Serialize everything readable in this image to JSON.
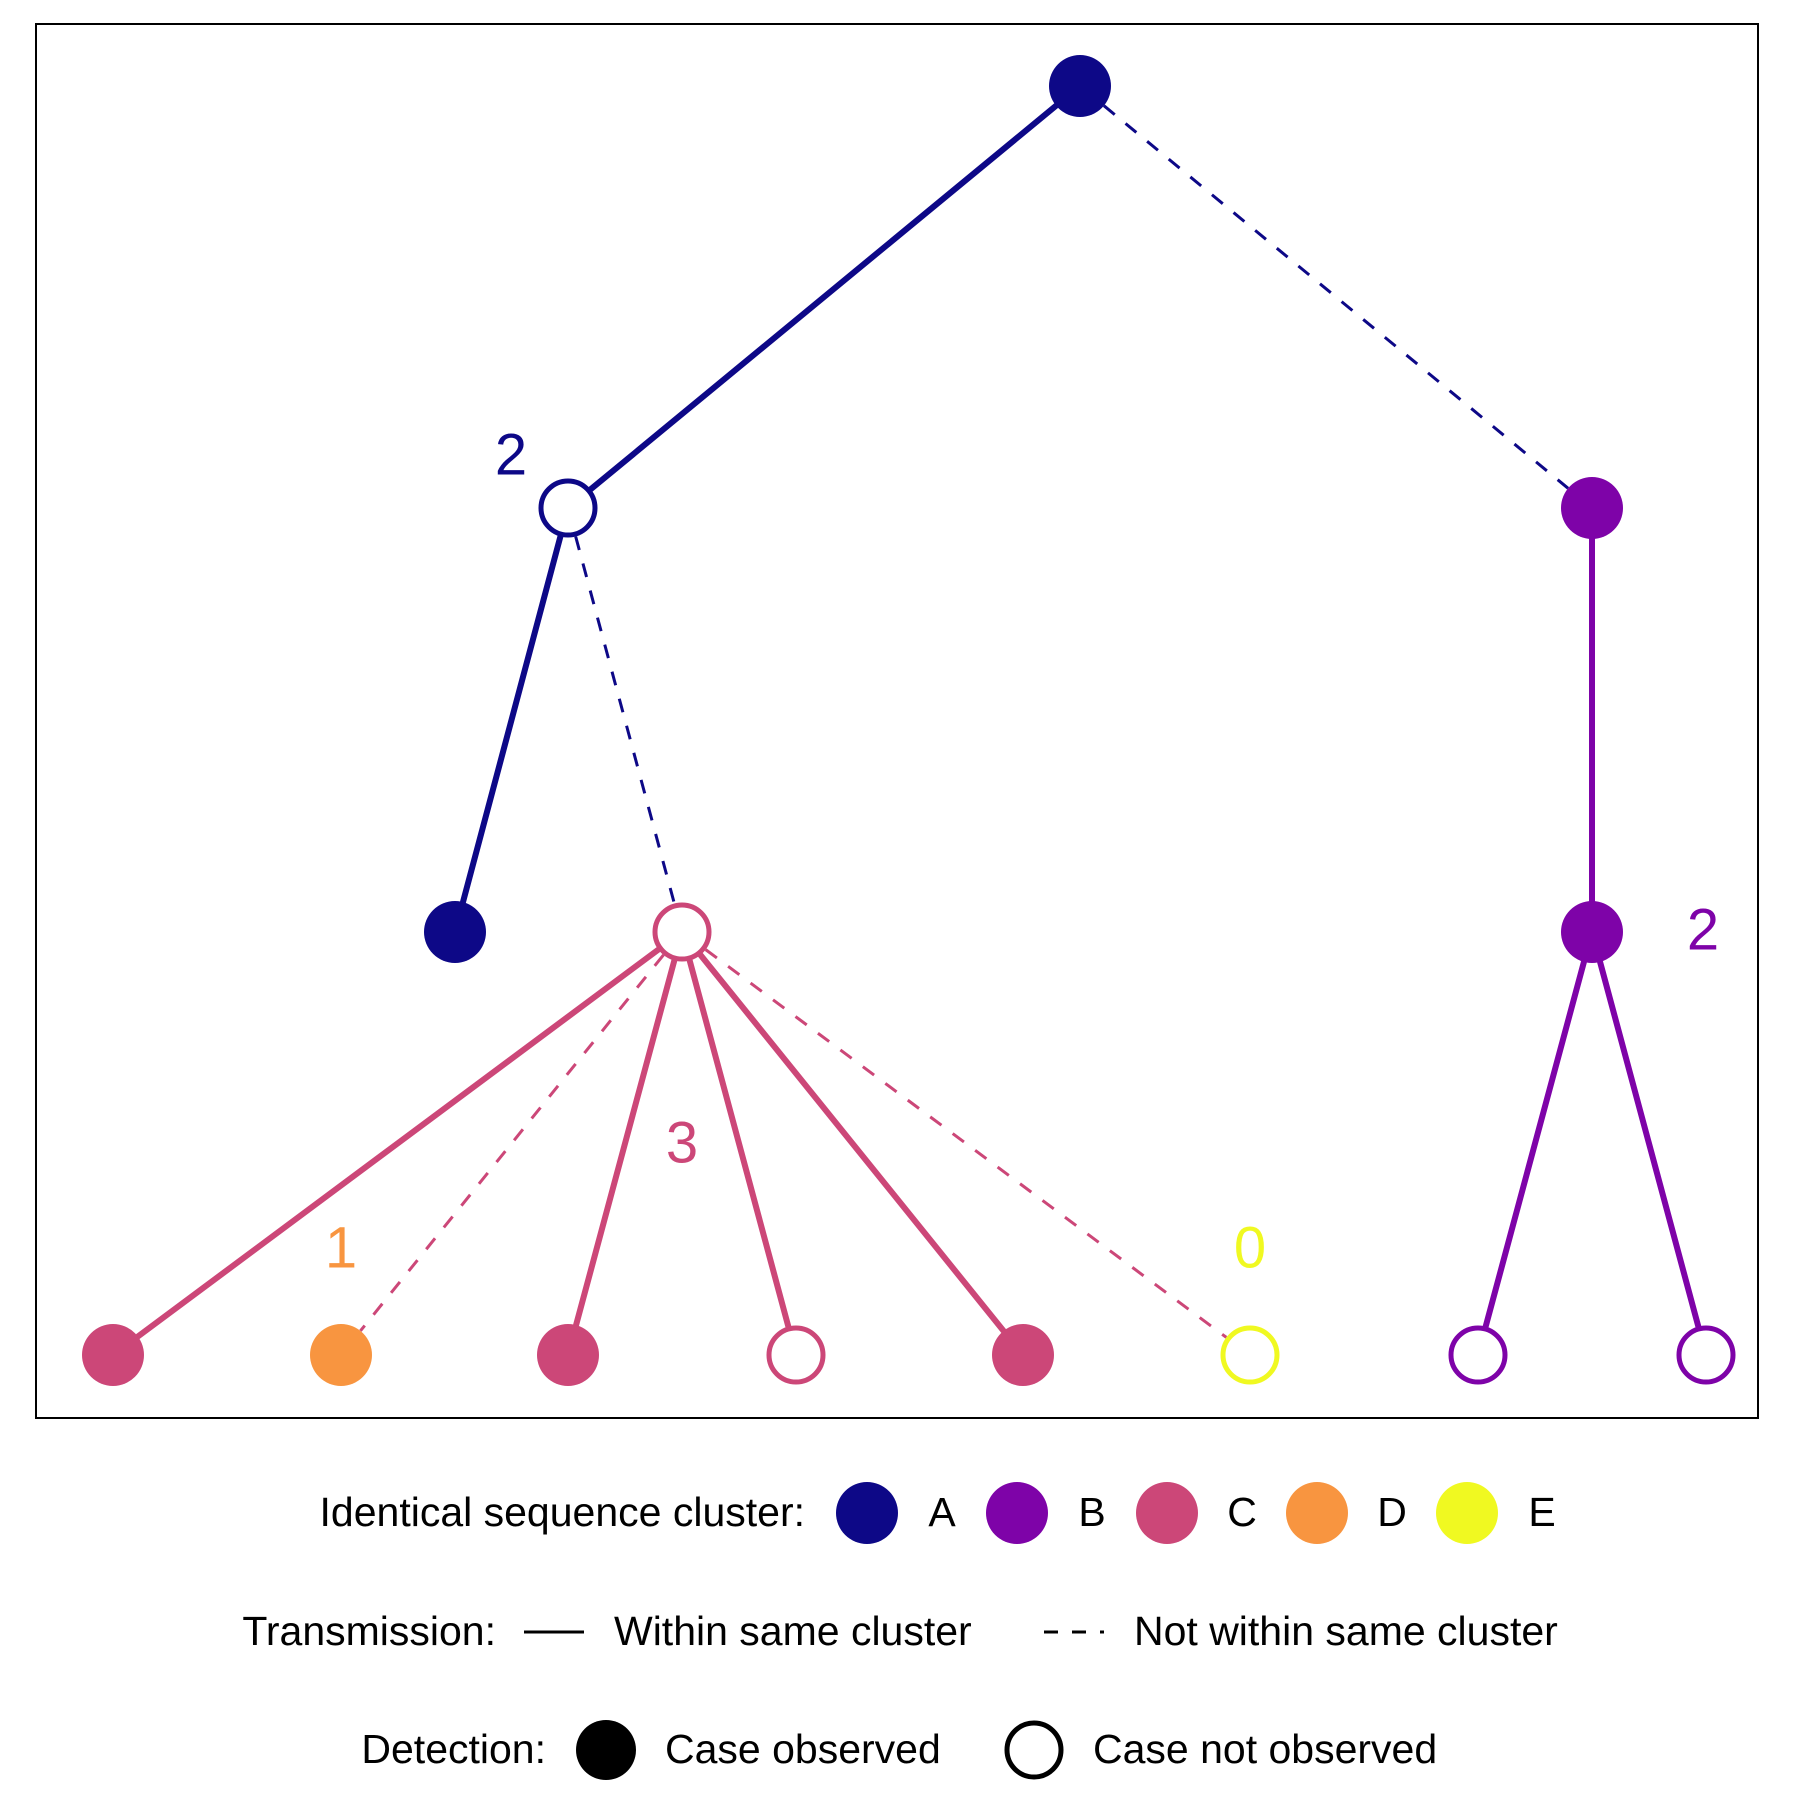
{
  "clusters": [
    {
      "id": "A",
      "label": "A",
      "color": "#0d0887"
    },
    {
      "id": "B",
      "label": "B",
      "color": "#7e03a8"
    },
    {
      "id": "C",
      "label": "C",
      "color": "#cc4778"
    },
    {
      "id": "D",
      "label": "D",
      "color": "#f89540"
    },
    {
      "id": "E",
      "label": "E",
      "color": "#f0f921"
    }
  ],
  "tree": {
    "nodes": [
      {
        "id": "n1",
        "cluster": "A",
        "observed": true
      },
      {
        "id": "n2",
        "cluster": "A",
        "observed": false,
        "count": "2"
      },
      {
        "id": "n3",
        "cluster": "B",
        "observed": true
      },
      {
        "id": "n4",
        "cluster": "A",
        "observed": true
      },
      {
        "id": "n5",
        "cluster": "C",
        "observed": false,
        "count": "3"
      },
      {
        "id": "n6",
        "cluster": "B",
        "observed": true,
        "count": "2"
      },
      {
        "id": "n7",
        "cluster": "C",
        "observed": true
      },
      {
        "id": "n8",
        "cluster": "D",
        "observed": true,
        "count": "1"
      },
      {
        "id": "n9",
        "cluster": "C",
        "observed": true
      },
      {
        "id": "n10",
        "cluster": "C",
        "observed": false
      },
      {
        "id": "n11",
        "cluster": "C",
        "observed": true
      },
      {
        "id": "n12",
        "cluster": "E",
        "observed": false,
        "count": "0"
      },
      {
        "id": "n13",
        "cluster": "B",
        "observed": false
      },
      {
        "id": "n14",
        "cluster": "B",
        "observed": false
      }
    ],
    "edges": [
      {
        "from": "n1",
        "to": "n2",
        "within_cluster": true
      },
      {
        "from": "n1",
        "to": "n3",
        "within_cluster": false
      },
      {
        "from": "n2",
        "to": "n4",
        "within_cluster": true
      },
      {
        "from": "n2",
        "to": "n5",
        "within_cluster": false
      },
      {
        "from": "n3",
        "to": "n6",
        "within_cluster": true
      },
      {
        "from": "n5",
        "to": "n7",
        "within_cluster": true
      },
      {
        "from": "n5",
        "to": "n8",
        "within_cluster": false
      },
      {
        "from": "n5",
        "to": "n9",
        "within_cluster": true
      },
      {
        "from": "n5",
        "to": "n10",
        "within_cluster": true
      },
      {
        "from": "n5",
        "to": "n11",
        "within_cluster": true
      },
      {
        "from": "n5",
        "to": "n12",
        "within_cluster": false
      },
      {
        "from": "n6",
        "to": "n13",
        "within_cluster": true
      },
      {
        "from": "n6",
        "to": "n14",
        "within_cluster": true
      }
    ]
  },
  "legend": {
    "cluster_title": "Identical sequence cluster:",
    "transmission_title": "Transmission:",
    "within_label": "Within same cluster",
    "not_within_label": "Not within same cluster",
    "detection_title": "Detection:",
    "observed_label": "Case observed",
    "not_observed_label": "Case not observed"
  }
}
